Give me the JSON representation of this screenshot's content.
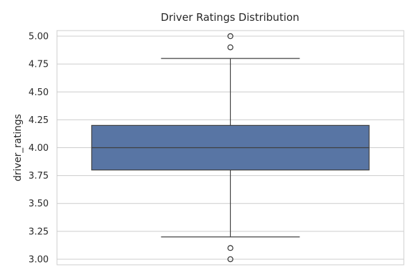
{
  "chart_data": {
    "type": "box",
    "title": "Driver Ratings Distribution",
    "xlabel": "",
    "ylabel": "driver_ratings",
    "ylim": [
      2.95,
      5.05
    ],
    "yticks": [
      3.0,
      3.25,
      3.5,
      3.75,
      4.0,
      4.25,
      4.5,
      4.75,
      5.0
    ],
    "ytick_labels": [
      "3.00",
      "3.25",
      "3.50",
      "3.75",
      "4.00",
      "4.25",
      "4.50",
      "4.75",
      "5.00"
    ],
    "grid": true,
    "series": [
      {
        "q1": 3.8,
        "median": 4.0,
        "q3": 4.2,
        "whisker_low": 3.2,
        "whisker_high": 4.8,
        "outliers": [
          3.0,
          3.1,
          4.9,
          5.0
        ],
        "color": "#5875a4"
      }
    ]
  }
}
